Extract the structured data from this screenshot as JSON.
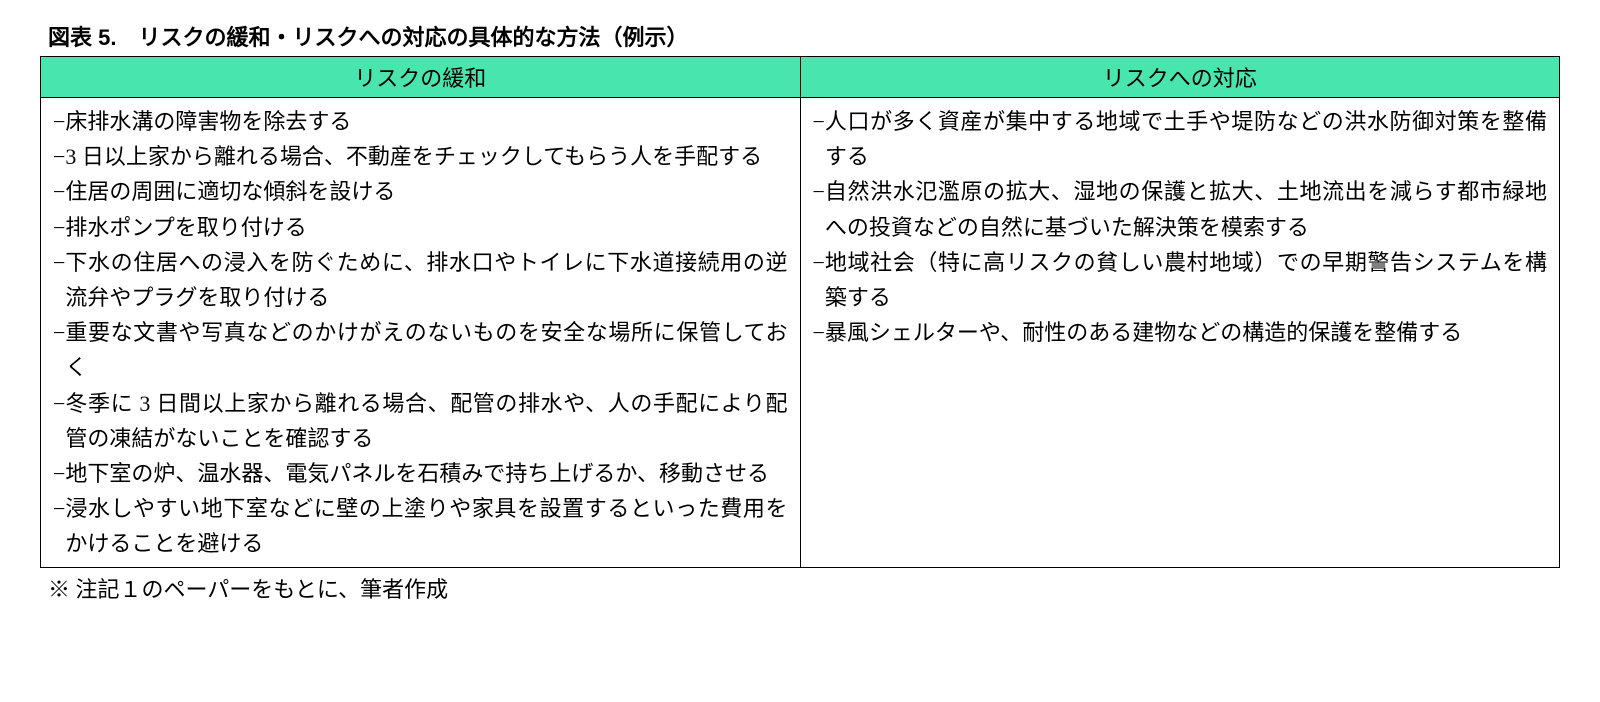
{
  "title": "図表 5.　リスクの緩和・リスクへの対応の具体的な方法（例示）",
  "table": {
    "header_bg": "#48e5af",
    "border_color": "#000000",
    "columns": [
      {
        "label": "リスクの緩和"
      },
      {
        "label": "リスクへの対応"
      }
    ],
    "left_items": [
      "床排水溝の障害物を除去する",
      "3 日以上家から離れる場合、不動産をチェックしてもらう人を手配する",
      "住居の周囲に適切な傾斜を設ける",
      "排水ポンプを取り付ける",
      "下水の住居への浸入を防ぐために、排水口やトイレに下水道接続用の逆流弁やプラグを取り付ける",
      "重要な文書や写真などのかけがえのないものを安全な場所に保管しておく",
      "冬季に 3 日間以上家から離れる場合、配管の排水や、人の手配により配管の凍結がないことを確認する",
      "地下室の炉、温水器、電気パネルを石積みで持ち上げるか、移動させる",
      "浸水しやすい地下室などに壁の上塗りや家具を設置するといった費用をかけることを避ける"
    ],
    "right_items": [
      "人口が多く資産が集中する地域で土手や堤防などの洪水防御対策を整備する",
      "自然洪水氾濫原の拡大、湿地の保護と拡大、土地流出を減らす都市緑地への投資などの自然に基づいた解決策を模索する",
      "地域社会（特に高リスクの貧しい農村地域）での早期警告システムを構築する",
      "暴風シェルターや、耐性のある建物などの構造的保護を整備する"
    ]
  },
  "footnote": "※ 注記１のペーパーをもとに、筆者作成",
  "dash": "−"
}
